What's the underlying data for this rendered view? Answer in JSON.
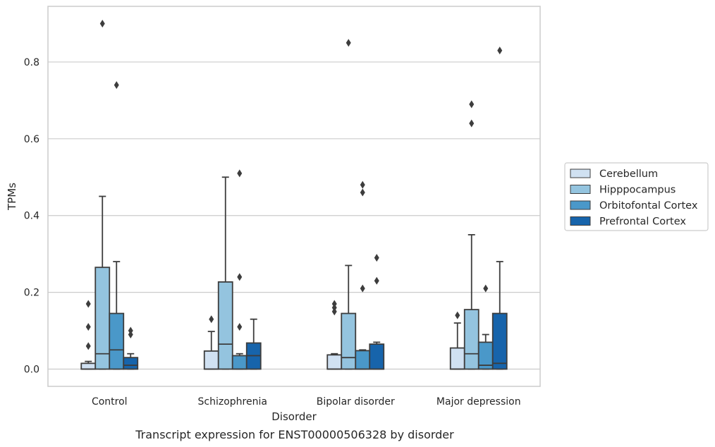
{
  "chart_data": {
    "type": "boxplot",
    "title": "",
    "caption": "Transcript expression for ENST00000506328 by disorder",
    "xlabel": "Disorder",
    "ylabel": "TPMs",
    "ylim": [
      -0.045,
      0.945
    ],
    "yticks": [
      "0.0",
      "0.2",
      "0.4",
      "0.6",
      "0.8"
    ],
    "grid": "horizontal",
    "legend_position": "right",
    "categories": [
      "Control",
      "Schizophrenia",
      "Bipolar disorder",
      "Major depression"
    ],
    "series": [
      {
        "name": "Cerebellum",
        "color": "#d0e1f2",
        "boxes": [
          {
            "q1": 0.0,
            "median": 0.0,
            "q3": 0.015,
            "whislo": 0.0,
            "whishi": 0.02,
            "fliers": [
              0.17,
              0.11,
              0.06
            ]
          },
          {
            "q1": 0.0,
            "median": 0.0,
            "q3": 0.047,
            "whislo": 0.0,
            "whishi": 0.098,
            "fliers": [
              0.13
            ]
          },
          {
            "q1": 0.0,
            "median": 0.0,
            "q3": 0.037,
            "whislo": 0.0,
            "whishi": 0.04,
            "fliers": [
              0.17,
              0.16,
              0.15
            ]
          },
          {
            "q1": 0.0,
            "median": 0.0,
            "q3": 0.055,
            "whislo": 0.0,
            "whishi": 0.12,
            "fliers": [
              0.14
            ]
          }
        ]
      },
      {
        "name": "Hipppocampus",
        "color": "#94c4df",
        "boxes": [
          {
            "q1": 0.0,
            "median": 0.04,
            "q3": 0.265,
            "whislo": 0.0,
            "whishi": 0.45,
            "fliers": [
              0.9
            ]
          },
          {
            "q1": 0.0,
            "median": 0.065,
            "q3": 0.227,
            "whislo": 0.0,
            "whishi": 0.5,
            "fliers": []
          },
          {
            "q1": 0.0,
            "median": 0.03,
            "q3": 0.145,
            "whislo": 0.0,
            "whishi": 0.27,
            "fliers": [
              0.85
            ]
          },
          {
            "q1": 0.0,
            "median": 0.04,
            "q3": 0.155,
            "whislo": 0.0,
            "whishi": 0.35,
            "fliers": [
              0.69,
              0.64
            ]
          }
        ]
      },
      {
        "name": "Orbitofontal Cortex",
        "color": "#4a98c9",
        "boxes": [
          {
            "q1": 0.0,
            "median": 0.05,
            "q3": 0.145,
            "whislo": 0.0,
            "whishi": 0.28,
            "fliers": [
              0.74
            ]
          },
          {
            "q1": 0.0,
            "median": 0.0,
            "q3": 0.035,
            "whislo": 0.0,
            "whishi": 0.04,
            "fliers": [
              0.51,
              0.24,
              0.11
            ]
          },
          {
            "q1": 0.0,
            "median": 0.0,
            "q3": 0.048,
            "whislo": 0.0,
            "whishi": 0.05,
            "fliers": [
              0.48,
              0.46,
              0.21
            ]
          },
          {
            "q1": 0.0,
            "median": 0.01,
            "q3": 0.07,
            "whislo": 0.0,
            "whishi": 0.09,
            "fliers": [
              0.21
            ]
          }
        ]
      },
      {
        "name": "Prefrontal Cortex",
        "color": "#1764ab",
        "boxes": [
          {
            "q1": 0.0,
            "median": 0.01,
            "q3": 0.03,
            "whislo": 0.0,
            "whishi": 0.04,
            "fliers": [
              0.1,
              0.09
            ]
          },
          {
            "q1": 0.0,
            "median": 0.035,
            "q3": 0.068,
            "whislo": 0.0,
            "whishi": 0.13,
            "fliers": []
          },
          {
            "q1": 0.0,
            "median": 0.0,
            "q3": 0.065,
            "whislo": 0.0,
            "whishi": 0.07,
            "fliers": [
              0.29,
              0.23
            ]
          },
          {
            "q1": 0.0,
            "median": 0.015,
            "q3": 0.145,
            "whislo": 0.0,
            "whishi": 0.28,
            "fliers": [
              0.83
            ]
          }
        ]
      }
    ],
    "colors": {
      "grid": "#cccccc",
      "frame": "#cccccc",
      "box_edge": "#3d3d3d",
      "flier": "#3d3d3d"
    }
  }
}
